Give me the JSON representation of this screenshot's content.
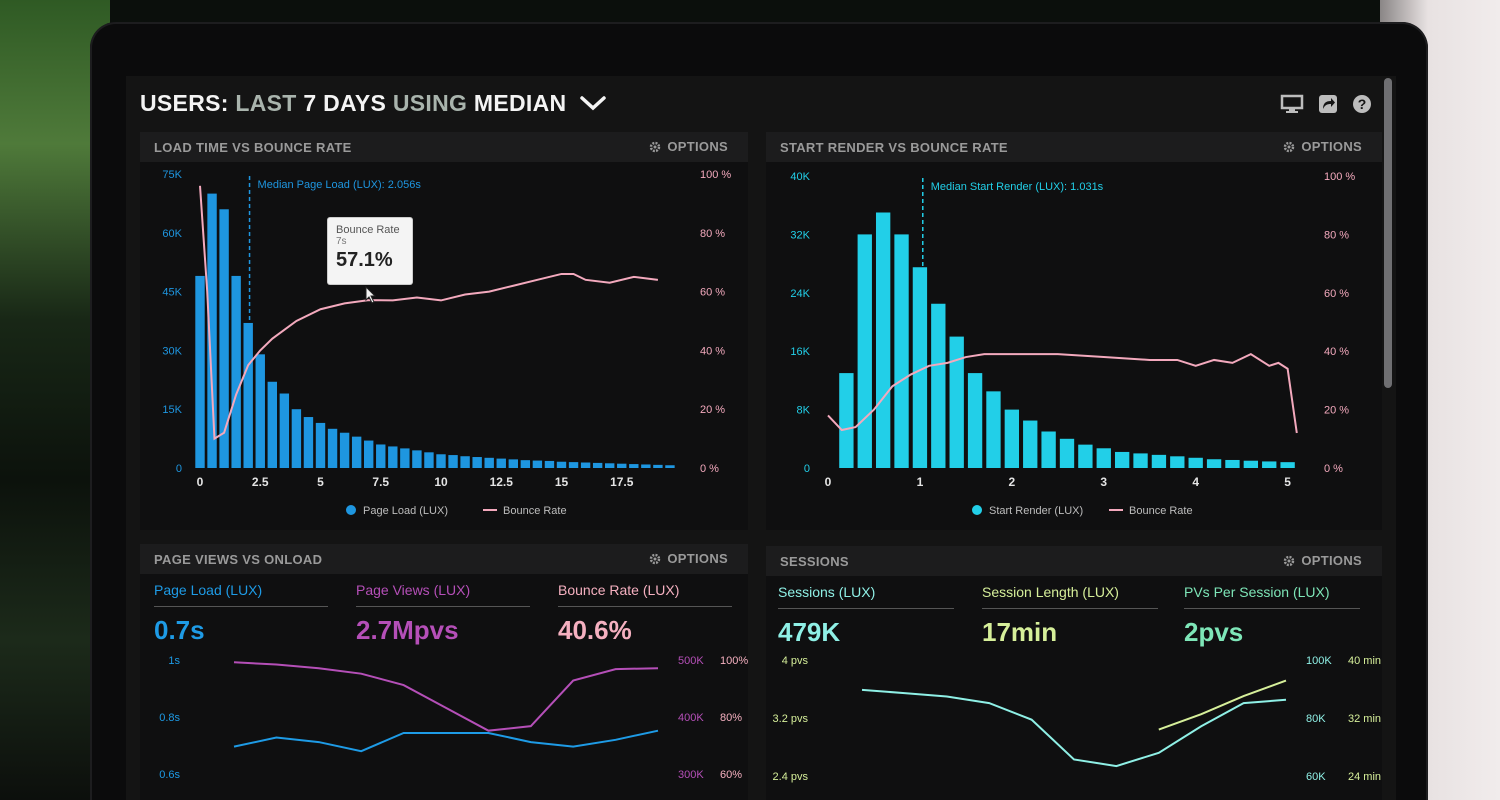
{
  "header": {
    "title_users": "USERS:",
    "title_last": "LAST",
    "title_days": "7 DAYS",
    "title_using": "USING",
    "title_median": "MEDIAN",
    "icons": [
      "monitor-icon",
      "share-icon",
      "help-icon"
    ]
  },
  "panels": {
    "load_time": {
      "title": "LOAD TIME VS BOUNCE RATE",
      "options": "OPTIONS"
    },
    "start_render": {
      "title": "START RENDER VS BOUNCE RATE",
      "options": "OPTIONS"
    },
    "page_views": {
      "title": "PAGE VIEWS VS ONLOAD",
      "options": "OPTIONS"
    },
    "sessions": {
      "title": "SESSIONS",
      "options": "OPTIONS"
    }
  },
  "tooltip": {
    "title": "Bounce Rate",
    "x": "7s",
    "value": "57.1%"
  },
  "metrics_left": [
    {
      "label": "Page Load (LUX)",
      "value": "0.7s",
      "color": "#1e9be6"
    },
    {
      "label": "Page Views (LUX)",
      "value": "2.7Mpvs",
      "color": "#b54fb8"
    },
    {
      "label": "Bounce Rate (LUX)",
      "value": "40.6%",
      "color": "#f5b0c0"
    }
  ],
  "metrics_right": [
    {
      "label": "Sessions (LUX)",
      "value": "479K",
      "color": "#8ff0e6"
    },
    {
      "label": "Session Length (LUX)",
      "value": "17min",
      "color": "#d6ef9a"
    },
    {
      "label": "PVs Per Session (LUX)",
      "value": "2pvs",
      "color": "#7ee6b8"
    }
  ],
  "chart_data": [
    {
      "type": "bar",
      "title": "LOAD TIME VS BOUNCE RATE",
      "annotation": "Median Page Load (LUX): 2.056s",
      "median_x": 2.056,
      "x_ticks": [
        "0",
        "2.5",
        "5",
        "7.5",
        "10",
        "12.5",
        "15",
        "17.5"
      ],
      "y_left_ticks": [
        "0",
        "15K",
        "30K",
        "45K",
        "60K",
        "75K"
      ],
      "y_right_ticks": [
        "0 %",
        "20 %",
        "40 %",
        "60 %",
        "80 %",
        "100 %"
      ],
      "xlim": [
        0,
        20
      ],
      "ylim_left": [
        0,
        75000
      ],
      "ylim_right": [
        0,
        100
      ],
      "legend": [
        "Page Load (LUX)",
        "Bounce Rate"
      ],
      "colors": {
        "bars": "#1e96e0",
        "line": "#f3a9bd"
      },
      "bar_x": [
        0,
        0.5,
        1,
        1.5,
        2,
        2.5,
        3,
        3.5,
        4,
        4.5,
        5,
        5.5,
        6,
        6.5,
        7,
        7.5,
        8,
        8.5,
        9,
        9.5,
        10,
        10.5,
        11,
        11.5,
        12,
        12.5,
        13,
        13.5,
        14,
        14.5,
        15,
        15.5,
        16,
        16.5,
        17,
        17.5,
        18,
        18.5,
        19,
        19.5
      ],
      "bar_values": [
        49000,
        70000,
        66000,
        49000,
        37000,
        29000,
        22000,
        19000,
        15000,
        13000,
        11500,
        10000,
        9000,
        8000,
        7000,
        6000,
        5500,
        5000,
        4500,
        4000,
        3500,
        3300,
        3000,
        2800,
        2600,
        2400,
        2200,
        2000,
        1900,
        1800,
        1600,
        1500,
        1400,
        1300,
        1200,
        1100,
        1000,
        900,
        800,
        700
      ],
      "line_x": [
        0,
        0.3,
        0.6,
        1,
        1.5,
        2,
        2.5,
        3,
        3.5,
        4,
        5,
        6,
        7,
        8,
        9,
        10,
        11,
        12,
        13,
        14,
        15,
        15.5,
        16,
        17,
        18,
        19
      ],
      "line_values": [
        96,
        60,
        10,
        12,
        25,
        35,
        40,
        44,
        47,
        50,
        54,
        56,
        57.1,
        57,
        58,
        57,
        59,
        60,
        62,
        64,
        66,
        66,
        64,
        63,
        65,
        64
      ]
    },
    {
      "type": "bar",
      "title": "START RENDER VS BOUNCE RATE",
      "annotation": "Median Start Render (LUX): 1.031s",
      "median_x": 1.031,
      "x_ticks": [
        "0",
        "1",
        "2",
        "3",
        "4",
        "5"
      ],
      "y_left_ticks": [
        "0",
        "8K",
        "16K",
        "24K",
        "32K",
        "40K"
      ],
      "y_right_ticks": [
        "0 %",
        "20 %",
        "40 %",
        "60 %",
        "80 %",
        "100 %"
      ],
      "xlim": [
        0,
        5.2
      ],
      "ylim_left": [
        0,
        40000
      ],
      "ylim_right": [
        0,
        100
      ],
      "legend": [
        "Start Render (LUX)",
        "Bounce Rate"
      ],
      "colors": {
        "bars": "#22cfe8",
        "line": "#f3a9bd"
      },
      "bar_x": [
        0.2,
        0.4,
        0.6,
        0.8,
        1.0,
        1.2,
        1.4,
        1.6,
        1.8,
        2.0,
        2.2,
        2.4,
        2.6,
        2.8,
        3.0,
        3.2,
        3.4,
        3.6,
        3.8,
        4.0,
        4.2,
        4.4,
        4.6,
        4.8,
        5.0
      ],
      "bar_values": [
        13000,
        32000,
        35000,
        32000,
        27500,
        22500,
        18000,
        13000,
        10500,
        8000,
        6500,
        5000,
        4000,
        3200,
        2700,
        2200,
        2000,
        1800,
        1600,
        1400,
        1200,
        1100,
        1000,
        900,
        800
      ],
      "line_x": [
        0,
        0.15,
        0.3,
        0.5,
        0.7,
        0.9,
        1.1,
        1.3,
        1.5,
        1.7,
        2,
        2.5,
        3,
        3.5,
        3.8,
        4,
        4.2,
        4.4,
        4.6,
        4.8,
        4.9,
        5.0,
        5.1
      ],
      "line_values": [
        18,
        13,
        14,
        20,
        28,
        32,
        35,
        36,
        38,
        39,
        39,
        39,
        38,
        37,
        37,
        35,
        37,
        36,
        39,
        35,
        36,
        34,
        12
      ]
    },
    {
      "type": "line",
      "title": "PAGE VIEWS VS ONLOAD",
      "y_left_ticks": [
        "0.6s",
        "0.8s",
        "1s"
      ],
      "y_right_ticks_a": [
        "300K",
        "400K",
        "500K"
      ],
      "y_right_ticks_b": [
        "60%",
        "80%",
        "100%"
      ],
      "series": [
        {
          "name": "Page Load (LUX)",
          "color": "#1e9be6",
          "values": [
            0.62,
            0.66,
            0.64,
            0.6,
            0.68,
            0.68,
            0.68,
            0.64,
            0.62,
            0.65,
            0.69
          ]
        },
        {
          "name": "Page Views (LUX)",
          "color": "#b54fb8",
          "values": [
            495,
            490,
            482,
            470,
            445,
            395,
            345,
            355,
            455,
            480,
            482
          ]
        },
        {
          "name": "Bounce Rate (LUX)",
          "color": "#f5b0c0",
          "values": []
        }
      ]
    },
    {
      "type": "line",
      "title": "SESSIONS",
      "y_left_ticks": [
        "2.4 pvs",
        "3.2 pvs",
        "4 pvs"
      ],
      "y_right_ticks_a": [
        "60K",
        "80K",
        "100K"
      ],
      "y_right_ticks_b": [
        "24 min",
        "32 min",
        "40 min"
      ],
      "series": [
        {
          "name": "Sessions (LUX)",
          "color": "#8ff0e6",
          "values": [
            81,
            80,
            79,
            77,
            72,
            60,
            58,
            62,
            70,
            77,
            78
          ]
        },
        {
          "name": "Session Length (LUX)",
          "color": "#d6ef9a",
          "values": [
            null,
            null,
            null,
            null,
            null,
            null,
            null,
            18,
            24,
            31,
            37
          ]
        },
        {
          "name": "PVs Per Session (LUX)",
          "color": "#7ee6b8",
          "values": []
        }
      ]
    }
  ]
}
